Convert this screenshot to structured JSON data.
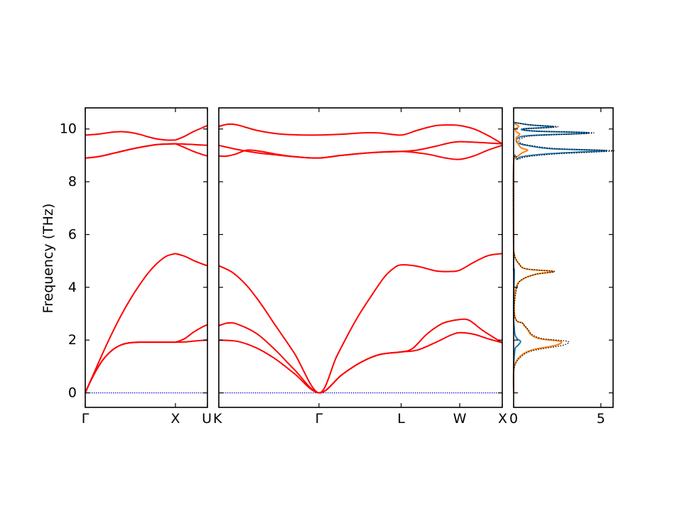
{
  "chart_data": [
    {
      "type": "line",
      "title": "",
      "xlabel": "",
      "ylabel": "Frequency (THz)",
      "ylim": [
        -0.55,
        10.8
      ],
      "yticks": [
        0,
        2,
        4,
        6,
        8,
        10
      ],
      "x_labels": [
        "Γ",
        "X",
        "U"
      ],
      "x_label_positions": [
        0,
        1,
        1.355
      ],
      "xlim": [
        0,
        1.355
      ],
      "grid": false,
      "line_color": "#ff0000",
      "zero_line_color": "#0000cc",
      "series": [
        {
          "x": [
            0,
            0.05,
            0.12,
            0.2,
            0.3,
            0.4,
            0.5,
            0.6,
            0.7,
            0.8,
            0.9,
            1.0
          ],
          "values": [
            0,
            0.38,
            0.84,
            1.27,
            1.62,
            1.82,
            1.9,
            1.92,
            1.92,
            1.92,
            1.92,
            1.92
          ]
        },
        {
          "x": [
            0,
            0.05,
            0.12,
            0.2,
            0.3,
            0.4,
            0.5,
            0.6,
            0.7,
            0.8,
            0.9,
            1.0
          ],
          "values": [
            0,
            0.38,
            0.84,
            1.27,
            1.62,
            1.82,
            1.9,
            1.92,
            1.92,
            1.92,
            1.92,
            1.92
          ]
        },
        {
          "x": [
            0,
            0.1,
            0.2,
            0.3,
            0.4,
            0.5,
            0.6,
            0.7,
            0.8,
            0.9,
            1.0
          ],
          "values": [
            0,
            0.78,
            1.55,
            2.28,
            2.95,
            3.55,
            4.08,
            4.55,
            4.92,
            5.18,
            5.28
          ]
        },
        {
          "x": [
            1.0,
            1.1,
            1.2,
            1.3,
            1.355
          ],
          "values": [
            1.92,
            1.93,
            1.96,
            1.99,
            2.0
          ]
        },
        {
          "x": [
            1.0,
            1.1,
            1.2,
            1.3,
            1.355
          ],
          "values": [
            1.92,
            2.05,
            2.3,
            2.5,
            2.58
          ]
        },
        {
          "x": [
            1.0,
            1.1,
            1.2,
            1.3,
            1.355
          ],
          "values": [
            5.28,
            5.18,
            5.02,
            4.88,
            4.82
          ]
        },
        {
          "x": [
            0,
            0.1,
            0.2,
            0.3,
            0.4,
            0.5,
            0.6,
            0.7,
            0.8,
            0.9,
            1.0
          ],
          "values": [
            8.9,
            8.93,
            8.99,
            9.07,
            9.15,
            9.23,
            9.3,
            9.36,
            9.41,
            9.43,
            9.44
          ]
        },
        {
          "x": [
            0,
            0.1,
            0.2,
            0.3,
            0.4,
            0.5,
            0.6,
            0.7,
            0.8,
            0.9,
            1.0
          ],
          "values": [
            8.9,
            8.93,
            8.99,
            9.07,
            9.15,
            9.23,
            9.3,
            9.36,
            9.41,
            9.43,
            9.44
          ]
        },
        {
          "x": [
            0,
            0.1,
            0.2,
            0.3,
            0.4,
            0.5,
            0.6,
            0.7,
            0.8,
            0.9,
            1.0
          ],
          "values": [
            9.77,
            9.79,
            9.83,
            9.88,
            9.9,
            9.87,
            9.8,
            9.7,
            9.62,
            9.58,
            9.58
          ]
        },
        {
          "x": [
            1.0,
            1.1,
            1.2,
            1.3,
            1.355
          ],
          "values": [
            9.44,
            9.3,
            9.15,
            9.03,
            8.98
          ]
        },
        {
          "x": [
            1.0,
            1.1,
            1.2,
            1.3,
            1.355
          ],
          "values": [
            9.44,
            9.43,
            9.41,
            9.39,
            9.38
          ]
        },
        {
          "x": [
            1.0,
            1.1,
            1.2,
            1.3,
            1.355
          ],
          "values": [
            9.58,
            9.72,
            9.9,
            10.05,
            10.13
          ]
        }
      ]
    },
    {
      "type": "line",
      "title": "",
      "xlabel": "",
      "ylabel": "",
      "ylim": [
        -0.55,
        10.8
      ],
      "x_labels": [
        "K",
        "Γ",
        "L",
        "W",
        "X"
      ],
      "x_label_positions": [
        0,
        1.06,
        1.93,
        2.55,
        3.0
      ],
      "xlim": [
        0,
        3.0
      ],
      "grid": false,
      "line_color": "#ff0000",
      "zero_line_color": "#0000cc",
      "series": [
        {
          "x": [
            0,
            0.2,
            0.4,
            0.6,
            0.8,
            1.06,
            1.3,
            1.5,
            1.7,
            1.93,
            2.1,
            2.3,
            2.45,
            2.55,
            2.7,
            2.85,
            3.0
          ],
          "values": [
            2.0,
            1.95,
            1.7,
            1.28,
            0.73,
            0,
            0.68,
            1.15,
            1.45,
            1.55,
            1.62,
            1.92,
            2.18,
            2.28,
            2.22,
            2.05,
            1.9
          ]
        },
        {
          "x": [
            0,
            0.1,
            0.2,
            0.4,
            0.6,
            0.8,
            1.06,
            1.3,
            1.5,
            1.7,
            1.93,
            2.05,
            2.2,
            2.35,
            2.45,
            2.55,
            2.65,
            2.8,
            3.0
          ],
          "values": [
            2.55,
            2.65,
            2.6,
            2.25,
            1.62,
            0.88,
            0,
            0.68,
            1.15,
            1.45,
            1.55,
            1.68,
            2.22,
            2.6,
            2.72,
            2.78,
            2.75,
            2.35,
            1.9
          ]
        },
        {
          "x": [
            0,
            0.15,
            0.3,
            0.45,
            0.6,
            0.8,
            1.06,
            1.25,
            1.45,
            1.6,
            1.75,
            1.85,
            1.93,
            2.1,
            2.3,
            2.45,
            2.55,
            2.7,
            2.85,
            3.0
          ],
          "values": [
            4.82,
            4.55,
            4.05,
            3.35,
            2.55,
            1.5,
            0,
            1.4,
            2.75,
            3.6,
            4.38,
            4.72,
            4.85,
            4.8,
            4.62,
            4.6,
            4.65,
            4.95,
            5.2,
            5.28
          ]
        },
        {
          "x": [
            0,
            0.08,
            0.18,
            0.3,
            0.45,
            0.6,
            0.8,
            1.06,
            1.3,
            1.6,
            1.93,
            2.2,
            2.4,
            2.55,
            2.7,
            2.85,
            3.0
          ],
          "values": [
            8.98,
            8.97,
            9.05,
            9.2,
            9.15,
            9.05,
            8.95,
            8.9,
            9.0,
            9.1,
            9.15,
            9.05,
            8.9,
            8.85,
            8.98,
            9.2,
            9.38
          ]
        },
        {
          "x": [
            0,
            0.2,
            0.4,
            0.6,
            0.8,
            1.06,
            1.3,
            1.6,
            1.93,
            2.1,
            2.3,
            2.45,
            2.55,
            2.7,
            2.85,
            3.0
          ],
          "values": [
            9.38,
            9.22,
            9.1,
            9.02,
            8.95,
            8.9,
            9.0,
            9.1,
            9.15,
            9.2,
            9.35,
            9.48,
            9.52,
            9.5,
            9.47,
            9.44
          ]
        },
        {
          "x": [
            0,
            0.1,
            0.2,
            0.4,
            0.6,
            0.8,
            1.06,
            1.3,
            1.5,
            1.7,
            1.93,
            2.1,
            2.3,
            2.45,
            2.55,
            2.7,
            2.85,
            3.0
          ],
          "values": [
            10.1,
            10.18,
            10.15,
            9.95,
            9.83,
            9.78,
            9.77,
            9.8,
            9.85,
            9.85,
            9.77,
            9.95,
            10.13,
            10.15,
            10.13,
            10.0,
            9.75,
            9.44
          ]
        }
      ]
    },
    {
      "type": "line",
      "title": "",
      "xlabel": "",
      "ylabel": "",
      "ylim": [
        -0.55,
        10.8
      ],
      "xlim": [
        0,
        5.7
      ],
      "xticks": [
        0,
        5
      ],
      "grid": false,
      "series": [
        {
          "color": "#1f77b4",
          "style": "solid",
          "y": [
            0,
            1,
            1.5,
            1.7,
            1.8,
            1.95,
            2.05,
            2.2,
            2.5,
            2.75,
            2.8,
            3.5,
            4.6,
            4.7,
            5.0,
            8.7,
            8.85,
            8.95,
            9.05,
            9.12,
            9.18,
            9.25,
            9.35,
            9.45,
            9.55,
            9.65,
            9.75,
            9.85,
            9.92,
            10.0,
            10.08,
            10.15,
            10.25
          ],
          "values": [
            0,
            0,
            0.05,
            0.1,
            0.25,
            0.4,
            0.2,
            0.08,
            0.03,
            0,
            0,
            0,
            0.04,
            0,
            0,
            0,
            0.2,
            0.5,
            1.8,
            3.6,
            5.3,
            2.2,
            1.0,
            0.3,
            0.15,
            0.25,
            0.9,
            4.3,
            1.2,
            0.5,
            2.3,
            1.0,
            0
          ]
        },
        {
          "color": "#ff7f0e",
          "style": "solid",
          "y": [
            0,
            0.8,
            1.2,
            1.5,
            1.65,
            1.8,
            1.95,
            2.05,
            2.2,
            2.4,
            2.55,
            2.65,
            2.75,
            3.2,
            4.0,
            4.3,
            4.5,
            4.6,
            4.7,
            4.9,
            5.1,
            5.3,
            5.5,
            8.7,
            8.9,
            9.0,
            9.1,
            9.2,
            9.3,
            9.6,
            9.7,
            9.8,
            9.9,
            10.0,
            10.1,
            10.2
          ],
          "values": [
            0,
            0,
            0.15,
            0.6,
            1.2,
            2.4,
            2.7,
            1.5,
            1.0,
            0.8,
            0.6,
            0.5,
            0.15,
            0.03,
            0.15,
            0.5,
            1.3,
            2.3,
            0.7,
            0.3,
            0.1,
            0.03,
            0,
            0,
            0.1,
            0.3,
            0.5,
            0.8,
            0.4,
            0.15,
            0.2,
            0.35,
            0.15,
            0.1,
            0.3,
            0.05
          ]
        },
        {
          "color": "#000000",
          "style": "dotted",
          "y": [
            0,
            0.8,
            1.2,
            1.5,
            1.65,
            1.8,
            1.95,
            2.05,
            2.2,
            2.4,
            2.55,
            2.65,
            2.75,
            3.2,
            4.0,
            4.3,
            4.5,
            4.6,
            4.7,
            4.9,
            5.1,
            5.3,
            5.5,
            8.7,
            8.85,
            8.95,
            9.05,
            9.12,
            9.18,
            9.25,
            9.35,
            9.45,
            9.55,
            9.65,
            9.75,
            9.85,
            9.92,
            10.0,
            10.08,
            10.15,
            10.25
          ],
          "values": [
            0,
            0,
            0.2,
            0.7,
            1.45,
            2.8,
            3.1,
            1.7,
            1.08,
            0.83,
            0.63,
            0.5,
            0.15,
            0.03,
            0.19,
            0.5,
            1.3,
            2.34,
            0.7,
            0.3,
            0.1,
            0.03,
            0,
            0,
            0.3,
            0.8,
            2.3,
            4.4,
            5.7,
            2.6,
            1.2,
            0.45,
            0.3,
            0.45,
            1.25,
            4.6,
            1.35,
            0.6,
            2.55,
            1.05,
            0
          ]
        }
      ]
    }
  ]
}
